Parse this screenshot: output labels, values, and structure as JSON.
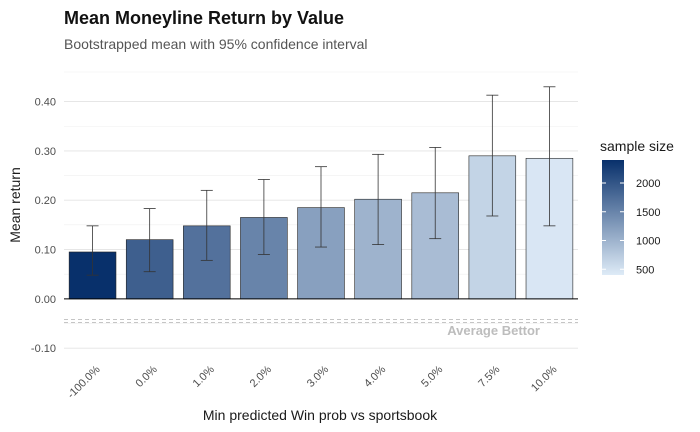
{
  "chart_data": {
    "type": "bar",
    "title": "Mean Moneyline Return by Value",
    "subtitle": "Bootstrapped mean with 95% confidence interval",
    "xlabel": "Min predicted Win prob vs sportsbook",
    "ylabel": "Mean return",
    "categories": [
      "-100.0%",
      "0.0%",
      "1.0%",
      "2.0%",
      "3.0%",
      "4.0%",
      "5.0%",
      "7.5%",
      "10.0%"
    ],
    "values": [
      0.095,
      0.12,
      0.148,
      0.165,
      0.185,
      0.202,
      0.215,
      0.29,
      0.285
    ],
    "ci_low": [
      0.048,
      0.055,
      0.078,
      0.09,
      0.105,
      0.11,
      0.122,
      0.168,
      0.148
    ],
    "ci_high": [
      0.148,
      0.183,
      0.22,
      0.242,
      0.268,
      0.293,
      0.307,
      0.413,
      0.43
    ],
    "sample_size": [
      2400,
      1900,
      1700,
      1500,
      1200,
      1000,
      900,
      650,
      450
    ],
    "ylim": [
      -0.12,
      0.46
    ],
    "yticks": [
      -0.1,
      0.0,
      0.1,
      0.2,
      0.3,
      0.4
    ],
    "ytick_labels": [
      "-0.10",
      "0.00",
      "0.10",
      "0.20",
      "0.30",
      "0.40"
    ],
    "grid": true,
    "reference_line": {
      "value": -0.045,
      "label": "Average Bettor",
      "color": "#bdbdbd"
    },
    "legend": {
      "title": "sample size",
      "placement": "right",
      "range": [
        400,
        2400
      ],
      "ticks": [
        500,
        1000,
        1500,
        2000
      ],
      "tick_labels": [
        "500",
        "1000",
        "1500",
        "2000"
      ],
      "color_low": "#deebf7",
      "color_high": "#08306b"
    }
  }
}
